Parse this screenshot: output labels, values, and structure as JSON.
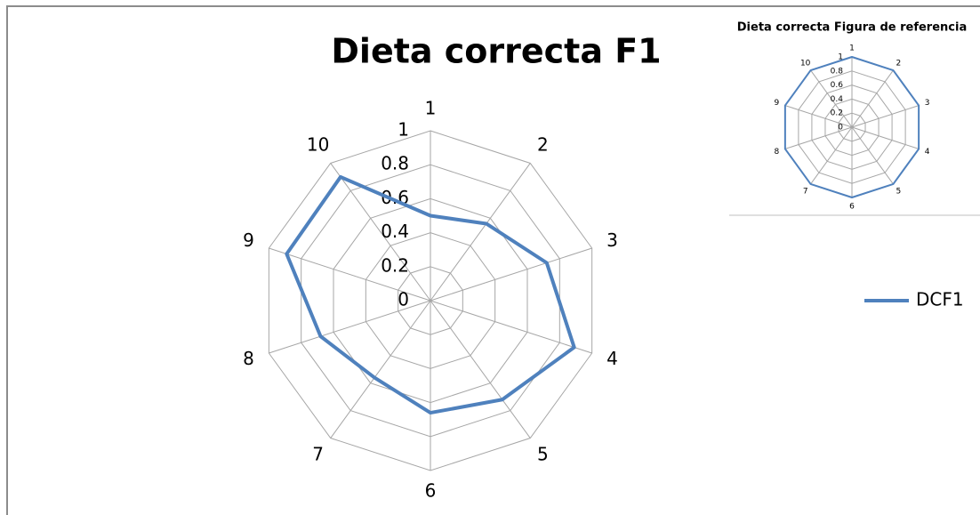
{
  "chart_data": [
    {
      "type": "radar",
      "title": "Dieta correcta F1",
      "categories": [
        "1",
        "2",
        "3",
        "4",
        "5",
        "6",
        "7",
        "8",
        "9",
        "10"
      ],
      "series": [
        {
          "name": "DCF1",
          "color": "#4f81bd",
          "values": [
            0.5,
            0.56,
            0.72,
            0.89,
            0.72,
            0.66,
            0.56,
            0.68,
            0.89,
            0.9
          ]
        }
      ],
      "ylim": [
        0,
        1
      ],
      "yticks": [
        0,
        0.2,
        0.4,
        0.6,
        0.8,
        1
      ],
      "grid": true,
      "legend": "right"
    },
    {
      "type": "radar",
      "title": "Dieta correcta Figura de referencia",
      "categories": [
        "1",
        "2",
        "3",
        "4",
        "5",
        "6",
        "7",
        "8",
        "9",
        "10"
      ],
      "series": [
        {
          "color": "#4f81bd",
          "values": [
            1,
            1,
            1,
            1,
            1,
            1,
            1,
            1,
            1,
            1
          ]
        }
      ],
      "ylim": [
        0,
        1
      ],
      "yticks": [
        0,
        0.2,
        0.4,
        0.6,
        0.8,
        1
      ],
      "grid": true
    }
  ]
}
